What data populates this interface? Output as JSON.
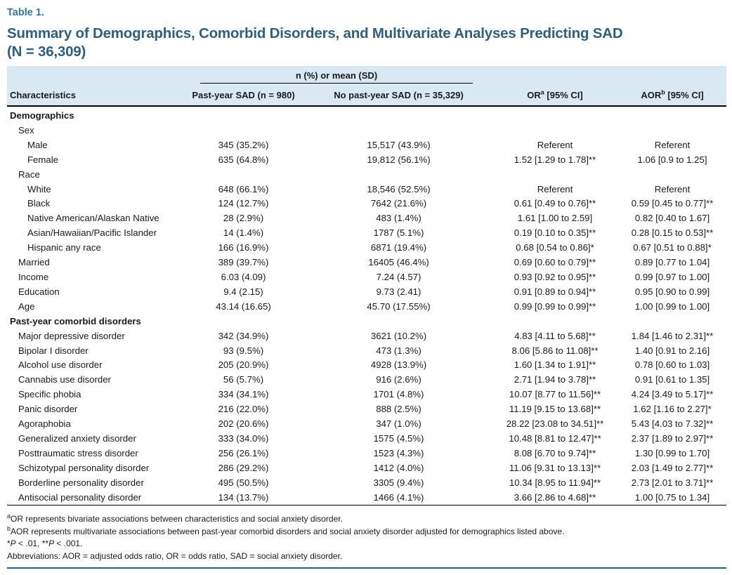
{
  "colors": {
    "table_label": "#36759c",
    "title": "#2e5f7d",
    "header_bg": "#d8e9f3",
    "rule": "#2d5f7f",
    "text": "#1a1a1a"
  },
  "header": {
    "table_label": "Table 1.",
    "title_line1": "Summary of Demographics, Comorbid Disorders, and Multivariate Analyses Predicting SAD",
    "title_line2": "(N = 36,309)"
  },
  "table": {
    "span_header": "n (%) or mean (SD)",
    "columns": [
      {
        "label": "Characteristics"
      },
      {
        "label": "Past-year SAD (n = 980)"
      },
      {
        "label": "No past-year SAD (n = 35,329)"
      },
      {
        "label": "OR",
        "sup": "a",
        "rest": " [95% CI]"
      },
      {
        "label": "AOR",
        "sup": "b",
        "rest": " [95% CI]"
      }
    ],
    "rows": [
      {
        "label": "Demographics",
        "indent": 0,
        "bold": true
      },
      {
        "label": "Sex",
        "indent": 1
      },
      {
        "label": "Male",
        "indent": 2,
        "c1": "345 (35.2%)",
        "c2": "15,517 (43.9%)",
        "or": "Referent",
        "aor": "Referent"
      },
      {
        "label": "Female",
        "indent": 2,
        "c1": "635 (64.8%)",
        "c2": "19,812 (56.1%)",
        "or": "1.52 [1.29 to 1.78]**",
        "aor": "1.06 [0.9 to 1.25]"
      },
      {
        "label": "Race",
        "indent": 1
      },
      {
        "label": "White",
        "indent": 2,
        "c1": "648 (66.1%)",
        "c2": "18,546 (52.5%)",
        "or": "Referent",
        "aor": "Referent"
      },
      {
        "label": "Black",
        "indent": 2,
        "c1": "124 (12.7%)",
        "c2": "7642 (21.6%)",
        "or": "0.61 [0.49 to 0.76]**",
        "aor": "0.59 [0.45 to 0.77]**"
      },
      {
        "label": "Native American/Alaskan Native",
        "indent": 2,
        "c1": "28 (2.9%)",
        "c2": "483 (1.4%)",
        "or": "1.61 [1.00 to 2.59]",
        "aor": "0.82 [0.40 to 1.67]"
      },
      {
        "label": "Asian/Hawaiian/Pacific Islander",
        "indent": 2,
        "c1": "14 (1.4%)",
        "c2": "1787 (5.1%)",
        "or": "0.19 [0.10 to 0.35]**",
        "aor": "0.28 [0.15 to 0.53]**"
      },
      {
        "label": "Hispanic any race",
        "indent": 2,
        "c1": "166 (16.9%)",
        "c2": "6871 (19.4%)",
        "or": "0.68 [0.54 to 0.86]*",
        "aor": "0.67 [0.51 to 0.88]*"
      },
      {
        "label": "Married",
        "indent": 1,
        "c1": "389 (39.7%)",
        "c2": "16405 (46.4%)",
        "or": "0.69 [0.60 to 0.79]**",
        "aor": "0.89 [0.77 to 1.04]"
      },
      {
        "label": "Income",
        "indent": 1,
        "c1": "6.03 (4.09)",
        "c2": "7.24 (4.57)",
        "or": "0.93 [0.92 to 0.95]**",
        "aor": "0.99 [0.97 to 1.00]"
      },
      {
        "label": "Education",
        "indent": 1,
        "c1": "9.4 (2.15)",
        "c2": "9.73 (2.41)",
        "or": "0.91 [0.89 to 0.94]**",
        "aor": "0.95 [0.90 to 0.99]"
      },
      {
        "label": "Age",
        "indent": 1,
        "c1": "43.14 (16.65)",
        "c2": "45.70 (17.55%)",
        "or": "0.99 [0.99 to 0.99]**",
        "aor": "1.00 [0.99 to 1.00]"
      },
      {
        "label": "Past-year comorbid disorders",
        "indent": 0,
        "bold": true
      },
      {
        "label": "Major depressive disorder",
        "indent": 1,
        "c1": "342 (34.9%)",
        "c2": "3621 (10.2%)",
        "or": "4.83 [4.11 to 5.68]**",
        "aor": "1.84 [1.46 to 2.31]**"
      },
      {
        "label": "Bipolar I disorder",
        "indent": 1,
        "c1": "93 (9.5%)",
        "c2": "473 (1.3%)",
        "or": "8.06 [5.86 to 11.08]**",
        "aor": "1.40 [0.91 to 2.16]"
      },
      {
        "label": "Alcohol use disorder",
        "indent": 1,
        "c1": "205 (20.9%)",
        "c2": "4928 (13.9%)",
        "or": "1.60 [1.34 to 1.91]**",
        "aor": "0.78 [0.60 to 1.03]"
      },
      {
        "label": "Cannabis use disorder",
        "indent": 1,
        "c1": "56 (5.7%)",
        "c2": "916 (2.6%)",
        "or": "2.71 [1.94 to 3.78]**",
        "aor": "0.91 [0.61 to 1.35]"
      },
      {
        "label": "Specific phobia",
        "indent": 1,
        "c1": "334 (34.1%)",
        "c2": "1701 (4.8%)",
        "or": "10.07 [8.77 to 11.56]**",
        "aor": "4.24 [3.49 to 5.17]**"
      },
      {
        "label": "Panic disorder",
        "indent": 1,
        "c1": "216 (22.0%)",
        "c2": "888 (2.5%)",
        "or": "11.19 [9.15 to 13.68]**",
        "aor": "1.62 [1.16 to 2.27]*"
      },
      {
        "label": "Agoraphobia",
        "indent": 1,
        "c1": "202 (20.6%)",
        "c2": "347 (1.0%)",
        "or": "28.22 [23.08 to 34.51]**",
        "aor": "5.43 [4.03 to 7.32]**"
      },
      {
        "label": "Generalized anxiety disorder",
        "indent": 1,
        "c1": "333 (34.0%)",
        "c2": "1575 (4.5%)",
        "or": "10.48 [8.81 to 12.47]**",
        "aor": "2.37 [1.89 to 2.97]**"
      },
      {
        "label": "Posttraumatic stress disorder",
        "indent": 1,
        "c1": "256 (26.1%)",
        "c2": "1523 (4.3%)",
        "or": "8.08 [6.70 to 9.74]**",
        "aor": "1.30 [0.99 to 1.70]"
      },
      {
        "label": "Schizotypal personality disorder",
        "indent": 1,
        "c1": "286 (29.2%)",
        "c2": "1412 (4.0%)",
        "or": "11.06 [9.31 to 13.13]**",
        "aor": "2.03 [1.49 to 2.77]**"
      },
      {
        "label": "Borderline personality disorder",
        "indent": 1,
        "c1": "495 (50.5%)",
        "c2": "3305 (9.4%)",
        "or": "10.34 [8.95 to 11.94]**",
        "aor": "2.73 [2.01 to 3.71]**"
      },
      {
        "label": "Antisocial personality disorder",
        "indent": 1,
        "c1": "134 (13.7%)",
        "c2": "1466 (4.1%)",
        "or": "3.66 [2.86 to 4.68]**",
        "aor": "1.00 [0.75 to 1.34]"
      }
    ]
  },
  "footnotes": [
    {
      "segments": [
        {
          "text": "a",
          "sup": true
        },
        {
          "text": "OR represents bivariate associations between characteristics and social anxiety disorder."
        }
      ]
    },
    {
      "segments": [
        {
          "text": "b",
          "sup": true
        },
        {
          "text": "AOR represents multivariate associations between past-year comorbid disorders and social anxiety disorder adjusted for demographics listed above."
        }
      ]
    },
    {
      "segments": [
        {
          "text": "*"
        },
        {
          "text": "P",
          "italic": true
        },
        {
          "text": " < .01, **"
        },
        {
          "text": "P",
          "italic": true
        },
        {
          "text": " < .001."
        }
      ]
    },
    {
      "segments": [
        {
          "text": "Abbreviations: AOR = adjusted odds ratio, OR = odds ratio, SAD = social anxiety disorder."
        }
      ]
    }
  ]
}
